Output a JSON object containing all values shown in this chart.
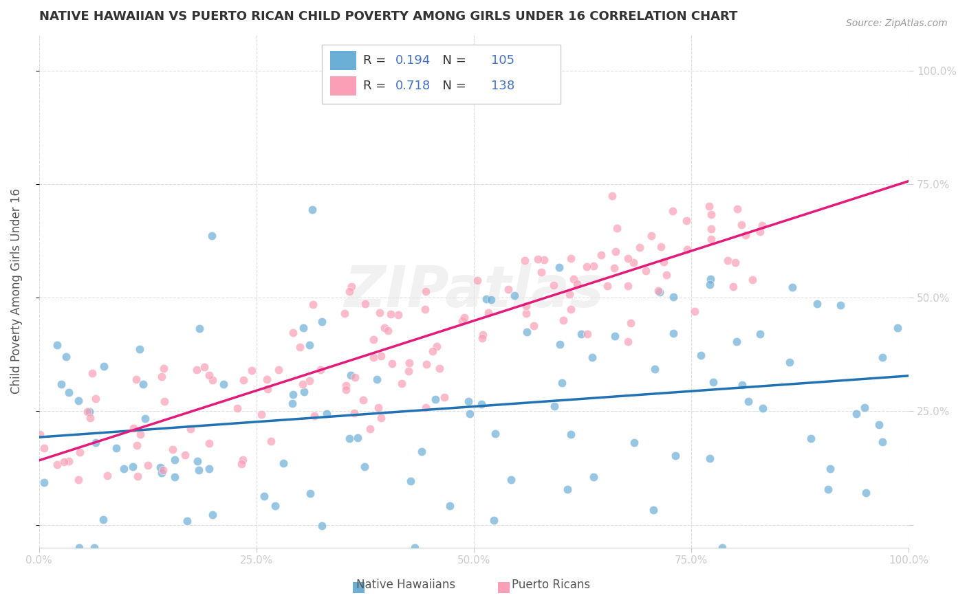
{
  "title": "NATIVE HAWAIIAN VS PUERTO RICAN CHILD POVERTY AMONG GIRLS UNDER 16 CORRELATION CHART",
  "source": "Source: ZipAtlas.com",
  "xlabel": "",
  "ylabel": "Child Poverty Among Girls Under 16",
  "blue_R": 0.194,
  "blue_N": 105,
  "pink_R": 0.718,
  "pink_N": 138,
  "legend_labels": [
    "Native Hawaiians",
    "Puerto Ricans"
  ],
  "blue_color": "#6baed6",
  "pink_color": "#fa9fb5",
  "blue_line_color": "#2171b5",
  "pink_line_color": "#e31a7a",
  "watermark": "ZIPatlas",
  "background_color": "#ffffff",
  "grid_color": "#dddddd",
  "tick_label_color_blue": "#4472c4",
  "tick_label_color_pink": "#e31a7a",
  "legend_R_color": "#4472c4",
  "legend_N_color": "#e31a7a",
  "blue_seed": 42,
  "pink_seed": 7,
  "xlim": [
    0,
    1
  ],
  "ylim": [
    0,
    1
  ],
  "figsize": [
    14.06,
    8.92
  ],
  "dpi": 100
}
